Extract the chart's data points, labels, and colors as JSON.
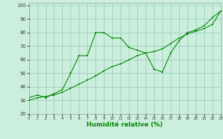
{
  "xlabel": "Humidité relative (%)",
  "background_color": "#cceedd",
  "grid_color": "#99ccbb",
  "line_color": "#008800",
  "x_data": [
    0,
    1,
    2,
    3,
    4,
    5,
    6,
    7,
    8,
    9,
    10,
    11,
    12,
    13,
    14,
    15,
    16,
    17,
    18,
    19,
    20,
    21,
    22,
    23
  ],
  "y_zigzag": [
    32,
    34,
    32,
    35,
    38,
    50,
    63,
    63,
    80,
    80,
    76,
    76,
    69,
    67,
    65,
    53,
    51,
    65,
    74,
    80,
    82,
    85,
    91,
    96
  ],
  "y_trend": [
    30,
    32,
    33,
    34,
    36,
    39,
    42,
    45,
    48,
    52,
    55,
    57,
    60,
    63,
    65,
    66,
    68,
    72,
    76,
    79,
    81,
    83,
    86,
    96
  ],
  "xlim": [
    0,
    23
  ],
  "ylim": [
    20,
    102
  ],
  "yticks": [
    20,
    30,
    40,
    50,
    60,
    70,
    80,
    90,
    100
  ],
  "xticks": [
    0,
    1,
    2,
    3,
    4,
    5,
    6,
    7,
    8,
    9,
    10,
    11,
    12,
    13,
    14,
    15,
    16,
    17,
    18,
    19,
    20,
    21,
    22,
    23
  ]
}
